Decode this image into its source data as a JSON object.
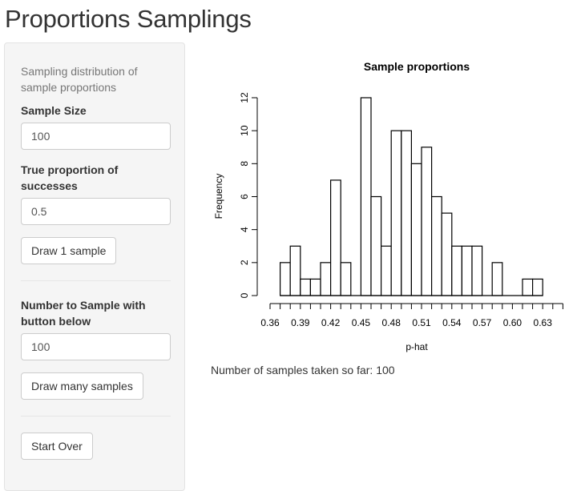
{
  "app": {
    "title": "Proportions Samplings"
  },
  "sidebar": {
    "description": "Sampling distribution of sample proportions",
    "sample_size": {
      "label": "Sample Size",
      "value": "100"
    },
    "true_proportion": {
      "label": "True proportion of successes",
      "value": "0.5"
    },
    "draw_one_button": "Draw 1 sample",
    "number_to_sample": {
      "label": "Number to Sample with button below",
      "value": "100"
    },
    "draw_many_button": "Draw many samples",
    "start_over_button": "Start Over"
  },
  "main": {
    "status_text": "Number of samples taken so far: 100"
  },
  "chart_data": {
    "type": "bar",
    "title": "Sample proportions",
    "xlabel": "p-hat",
    "ylabel": "Frequency",
    "bin_width": 0.01,
    "bin_starts": [
      0.37,
      0.38,
      0.39,
      0.4,
      0.41,
      0.42,
      0.43,
      0.44,
      0.45,
      0.46,
      0.47,
      0.48,
      0.49,
      0.5,
      0.51,
      0.52,
      0.53,
      0.54,
      0.55,
      0.56,
      0.57,
      0.58,
      0.59,
      0.6,
      0.61,
      0.62
    ],
    "values": [
      2,
      3,
      1,
      1,
      2,
      7,
      2,
      0,
      12,
      6,
      3,
      10,
      10,
      8,
      9,
      6,
      5,
      3,
      3,
      3,
      0,
      2,
      0,
      0,
      1,
      1
    ],
    "xlim": [
      0.36,
      0.65
    ],
    "ylim": [
      0,
      12
    ],
    "y_ticks": [
      0,
      2,
      4,
      6,
      8,
      10,
      12
    ],
    "x_tick_labels": [
      "0.36",
      "0.39",
      "0.42",
      "0.45",
      "0.48",
      "0.51",
      "0.54",
      "0.57",
      "0.60",
      "0.63"
    ],
    "grid": false,
    "legend": false
  }
}
